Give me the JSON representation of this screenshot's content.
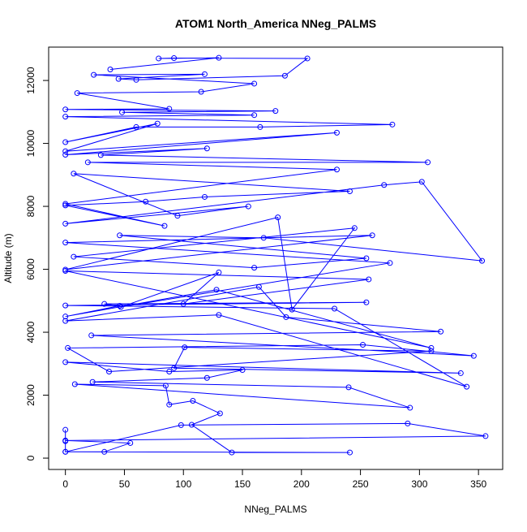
{
  "chart_data": {
    "type": "line",
    "title": "ATOM1 North_America NNeg_PALMS",
    "x_label": "NNeg_PALMS",
    "y_label": "Altitude (m)",
    "color": "#0000ff",
    "markers": true,
    "xlim": [
      -14.2,
      370.5
    ],
    "ylim": [
      -360,
      13060
    ],
    "xticks": [
      0,
      50,
      100,
      150,
      200,
      250,
      300,
      350
    ],
    "yticks": [
      0,
      2000,
      4000,
      6000,
      8000,
      10000,
      12000
    ],
    "series": [
      {
        "name": "NNeg_PALMS",
        "x": [
          0,
          0,
          0,
          33,
          55,
          0,
          356,
          290,
          98,
          0,
          241,
          141,
          107,
          131,
          108,
          88,
          85,
          8,
          292,
          240,
          23,
          120,
          150,
          88,
          0,
          335,
          92,
          101,
          310,
          37,
          2,
          252,
          346,
          22,
          318,
          187,
          164,
          0,
          130,
          340,
          228,
          0,
          255,
          33,
          46,
          0,
          128,
          310,
          0,
          257,
          100,
          130,
          47,
          275,
          0,
          260,
          0,
          180,
          192,
          245,
          7,
          160,
          255,
          46,
          168,
          353,
          302,
          270,
          0,
          155,
          95,
          7,
          241,
          118,
          68,
          0,
          84,
          0,
          230,
          19,
          307,
          30,
          120,
          0,
          230,
          0,
          78,
          0,
          60,
          165,
          277,
          0,
          160,
          48,
          178,
          0,
          88,
          10,
          115,
          160,
          24,
          118,
          45,
          60,
          186,
          205,
          92,
          79,
          130,
          38
        ],
        "values": [
          900,
          540,
          200,
          200,
          480,
          560,
          700,
          1100,
          1050,
          200,
          180,
          180,
          1060,
          1420,
          1820,
          1700,
          2300,
          2350,
          1600,
          2250,
          2420,
          2550,
          2800,
          2750,
          3050,
          2700,
          2860,
          3520,
          3400,
          2750,
          3500,
          3600,
          3250,
          3900,
          4020,
          4480,
          5440,
          4360,
          4550,
          2270,
          4750,
          4850,
          4950,
          4900,
          4840,
          4500,
          5350,
          3500,
          5950,
          5680,
          4900,
          5900,
          4800,
          6200,
          6850,
          7080,
          5990,
          7650,
          4720,
          7310,
          6400,
          6050,
          6350,
          7080,
          7000,
          6270,
          8780,
          8680,
          7450,
          8000,
          7700,
          9040,
          8480,
          8300,
          8150,
          8030,
          7380,
          8080,
          9170,
          9400,
          9400,
          9630,
          9840,
          9640,
          10340,
          9750,
          10630,
          10040,
          10520,
          10520,
          10600,
          10850,
          10900,
          10990,
          11030,
          11080,
          11100,
          11600,
          11640,
          11900,
          12180,
          12200,
          12050,
          12020,
          12150,
          12700,
          12710,
          12700,
          12720,
          12350
        ]
      }
    ]
  }
}
